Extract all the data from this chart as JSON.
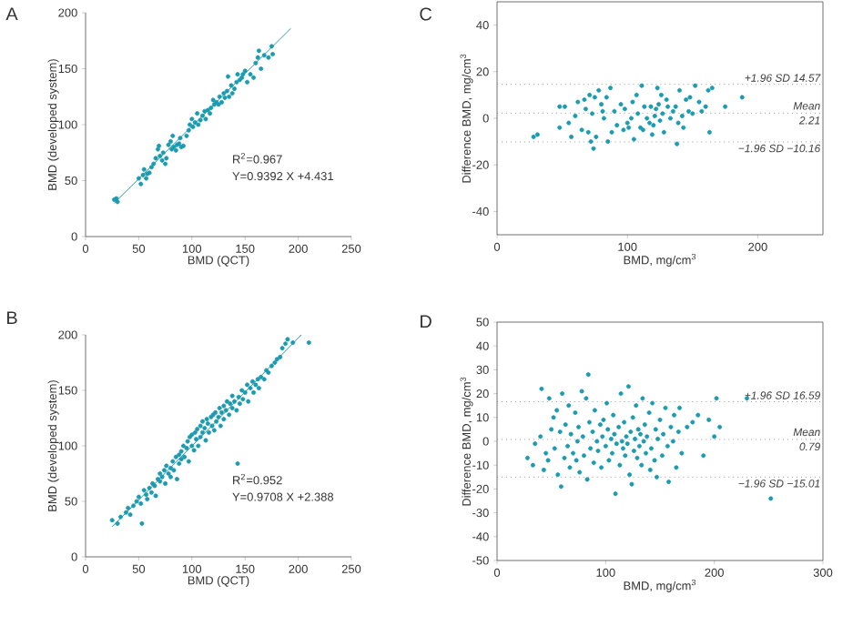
{
  "chart_data": [
    {
      "type": "scatter",
      "title": "A",
      "xlabel": "BMD (QCT)",
      "ylabel": "BMD (developed system)",
      "xlim": [
        0,
        250
      ],
      "ylim": [
        0,
        200
      ],
      "xticks": [
        0,
        50,
        100,
        150,
        200,
        250
      ],
      "yticks": [
        0,
        50,
        100,
        150,
        200
      ],
      "annotations": [
        "R$^{2}$=0.967",
        "Y=0.9392 X +4.431"
      ],
      "series": [
        {
          "marker": "circle",
          "color": "#1a9bb0",
          "x": [
            27,
            29,
            30,
            50,
            52,
            54,
            55,
            57,
            58,
            60,
            62,
            64,
            66,
            68,
            69,
            70,
            72,
            73,
            75,
            76,
            78,
            80,
            81,
            82,
            83,
            85,
            86,
            88,
            89,
            90,
            92,
            95,
            97,
            98,
            100,
            101,
            103,
            105,
            106,
            108,
            110,
            112,
            113,
            115,
            117,
            118,
            120,
            121,
            123,
            125,
            126,
            128,
            130,
            131,
            133,
            134,
            135,
            137,
            138,
            140,
            142,
            143,
            145,
            147,
            148,
            150,
            152,
            155,
            158,
            160,
            162,
            163,
            165,
            168,
            172,
            175,
            176
          ],
          "values": [
            33,
            34,
            31,
            52,
            47,
            55,
            60,
            52,
            56,
            57,
            62,
            65,
            70,
            78,
            81,
            72,
            68,
            75,
            65,
            70,
            82,
            85,
            78,
            90,
            80,
            77,
            82,
            83,
            88,
            80,
            81,
            90,
            95,
            100,
            105,
            98,
            102,
            110,
            100,
            104,
            108,
            112,
            105,
            113,
            110,
            115,
            122,
            118,
            120,
            118,
            125,
            120,
            128,
            124,
            130,
            143,
            125,
            135,
            128,
            132,
            138,
            145,
            140,
            142,
            145,
            148,
            138,
            145,
            142,
            155,
            160,
            166,
            150,
            162,
            160,
            170,
            163
          ]
        },
        {
          "type": "line",
          "marker": "none",
          "color": "#2a9da8",
          "x": [
            27,
            193
          ],
          "values": [
            30,
            186
          ]
        }
      ]
    },
    {
      "type": "scatter",
      "title": "C",
      "xlabel": "BMD, mg/cm$^{3}$",
      "ylabel": "Difference BMD, mg/cm$^{3}$",
      "xlim": [
        0,
        250
      ],
      "ylim": [
        -50,
        50
      ],
      "xticks": [
        0,
        100,
        200
      ],
      "yticks": [
        -40,
        -20,
        0,
        20,
        40
      ],
      "ref_lines": [
        {
          "axis": "y",
          "value": 14.57,
          "label": "+1.96 SD 14.57",
          "color": "#999999",
          "line_style": "dotted"
        },
        {
          "axis": "y",
          "value": 2.21,
          "label": "Mean 2.21",
          "color": "#999999",
          "line_style": "dotted"
        },
        {
          "axis": "y",
          "value": -10.16,
          "label": "−1.96 SD −10.16",
          "color": "#999999",
          "line_style": "dotted"
        }
      ],
      "series": [
        {
          "marker": "circle",
          "color": "#1a9bb0",
          "x": [
            28,
            31,
            48,
            48,
            52,
            55,
            57,
            60,
            62,
            65,
            67,
            68,
            70,
            71,
            72,
            73,
            74,
            75,
            76,
            78,
            80,
            81,
            82,
            84,
            85,
            87,
            88,
            90,
            92,
            95,
            97,
            98,
            100,
            101,
            103,
            104,
            105,
            107,
            108,
            110,
            111,
            112,
            113,
            115,
            117,
            118,
            119,
            120,
            121,
            122,
            123,
            124,
            125,
            126,
            127,
            128,
            130,
            131,
            133,
            135,
            137,
            138,
            139,
            140,
            142,
            143,
            145,
            147,
            148,
            150,
            152,
            155,
            157,
            160,
            162,
            163,
            165,
            175,
            188
          ],
          "values": [
            -8,
            -7,
            5,
            -4,
            5,
            -2,
            -8,
            1,
            7,
            -5,
            8,
            4,
            -6,
            10,
            -10,
            2,
            -13,
            9,
            -8,
            12,
            6,
            3,
            0,
            9,
            -10,
            13,
            -6,
            3,
            -3,
            6,
            -5,
            4,
            -2,
            -4,
            0,
            7,
            -9,
            10,
            2,
            -4,
            14,
            -5,
            5,
            0,
            -2,
            5,
            -7,
            -3,
            1,
            4,
            13,
            6,
            -1,
            10,
            2,
            -6,
            8,
            5,
            0,
            3,
            5,
            -11,
            -2,
            12,
            1,
            -4,
            8,
            3,
            9,
            2,
            14,
            7,
            3,
            5,
            12,
            -6,
            13,
            5,
            9
          ]
        }
      ]
    },
    {
      "type": "scatter",
      "title": "B",
      "xlabel": "BMD (QCT)",
      "ylabel": "BMD (developed system)",
      "xlim": [
        0,
        250
      ],
      "ylim": [
        0,
        200
      ],
      "xticks": [
        0,
        50,
        100,
        150,
        200,
        250
      ],
      "yticks": [
        0,
        50,
        100,
        150,
        200
      ],
      "annotations": [
        "R$^{2}$=0.952",
        "Y=0.9708 X +2.388"
      ],
      "series": [
        {
          "marker": "circle",
          "color": "#1a9bb0",
          "x": [
            25,
            30,
            33,
            38,
            40,
            42,
            45,
            48,
            50,
            52,
            53,
            55,
            57,
            58,
            60,
            62,
            63,
            65,
            66,
            68,
            70,
            70,
            72,
            74,
            75,
            76,
            78,
            80,
            80,
            82,
            83,
            85,
            86,
            88,
            88,
            90,
            90,
            92,
            93,
            95,
            96,
            97,
            98,
            100,
            100,
            102,
            103,
            104,
            105,
            106,
            108,
            108,
            110,
            110,
            112,
            113,
            114,
            115,
            116,
            118,
            119,
            120,
            121,
            122,
            123,
            125,
            126,
            127,
            128,
            130,
            130,
            132,
            133,
            135,
            136,
            138,
            138,
            140,
            142,
            143,
            144,
            145,
            147,
            148,
            150,
            152,
            153,
            155,
            157,
            158,
            160,
            162,
            163,
            165,
            168,
            170,
            172,
            175,
            178,
            180,
            183,
            185,
            188,
            190,
            195,
            210
          ],
          "values": [
            33,
            30,
            36,
            40,
            44,
            38,
            46,
            50,
            54,
            48,
            30,
            60,
            56,
            52,
            62,
            58,
            66,
            64,
            55,
            70,
            68,
            75,
            72,
            78,
            66,
            82,
            75,
            80,
            72,
            86,
            78,
            90,
            70,
            92,
            84,
            95,
            88,
            100,
            90,
            98,
            104,
            86,
            108,
            100,
            110,
            96,
            112,
            106,
            115,
            100,
            118,
            108,
            112,
            122,
            116,
            105,
            124,
            120,
            112,
            126,
            118,
            128,
            114,
            130,
            122,
            126,
            134,
            118,
            130,
            136,
            124,
            132,
            140,
            128,
            138,
            134,
            145,
            140,
            132,
            84,
            144,
            138,
            150,
            142,
            148,
            155,
            140,
            152,
            158,
            148,
            155,
            160,
            152,
            162,
            160,
            168,
            166,
            172,
            175,
            178,
            180,
            188,
            192,
            196,
            193,
            193
          ]
        },
        {
          "type": "line",
          "marker": "none",
          "color": "#2a9da8",
          "x": [
            25,
            203
          ],
          "values": [
            27,
            200
          ]
        }
      ]
    },
    {
      "type": "scatter",
      "title": "D",
      "xlabel": "BMD, mg/cm$^{3}$",
      "ylabel": "Difference BMD, mg/cm$^{3}$",
      "xlim": [
        0,
        300
      ],
      "ylim": [
        -50,
        50
      ],
      "xticks": [
        0,
        100,
        200,
        300
      ],
      "yticks": [
        -50,
        -40,
        -30,
        -20,
        -10,
        0,
        10,
        20,
        30,
        40,
        50
      ],
      "ref_lines": [
        {
          "axis": "y",
          "value": 16.59,
          "label": "+1.96 SD 16.59",
          "color": "#999999",
          "line_style": "dotted"
        },
        {
          "axis": "y",
          "value": 0.79,
          "label": "Mean 0.79",
          "color": "#999999",
          "line_style": "dotted"
        },
        {
          "axis": "y",
          "value": -15.01,
          "label": "−1.96 SD −15.01",
          "color": "#999999",
          "line_style": "dotted"
        }
      ],
      "series": [
        {
          "marker": "circle",
          "color": "#1a9bb0",
          "x": [
            28,
            33,
            35,
            40,
            41,
            43,
            45,
            47,
            48,
            50,
            52,
            53,
            55,
            56,
            58,
            59,
            60,
            62,
            63,
            65,
            66,
            67,
            68,
            70,
            72,
            73,
            74,
            75,
            76,
            78,
            79,
            80,
            82,
            83,
            84,
            85,
            86,
            88,
            89,
            90,
            92,
            93,
            95,
            96,
            97,
            98,
            100,
            101,
            102,
            103,
            105,
            106,
            107,
            108,
            109,
            110,
            112,
            113,
            114,
            115,
            116,
            117,
            118,
            119,
            120,
            121,
            122,
            123,
            124,
            125,
            126,
            127,
            128,
            129,
            130,
            131,
            132,
            133,
            134,
            135,
            136,
            137,
            138,
            140,
            141,
            142,
            143,
            145,
            146,
            147,
            148,
            150,
            152,
            153,
            155,
            157,
            158,
            160,
            162,
            163,
            165,
            167,
            168,
            170,
            175,
            180,
            185,
            190,
            195,
            200,
            202,
            205,
            230,
            252
          ],
          "values": [
            -7,
            -10,
            -1,
            2,
            22,
            -12,
            -5,
            -8,
            18,
            5,
            10,
            -3,
            13,
            -14,
            4,
            -19,
            20,
            -7,
            7,
            -2,
            15,
            -11,
            3,
            -5,
            12,
            -8,
            0,
            6,
            -13,
            21,
            2,
            -6,
            18,
            -16,
            28,
            8,
            -3,
            4,
            -9,
            13,
            0,
            -4,
            7,
            -11,
            2,
            9,
            -2,
            16,
            5,
            -8,
            1,
            -5,
            11,
            3,
            -22,
            -1,
            6,
            -10,
            20,
            0,
            -3,
            8,
            -6,
            2,
            -1,
            23,
            -14,
            4,
            -18,
            10,
            -4,
            1,
            15,
            -7,
            5,
            -2,
            3,
            -10,
            18,
            0,
            7,
            -5,
            2,
            12,
            -12,
            -3,
            16,
            -8,
            5,
            -15,
            1,
            9,
            -6,
            3,
            14,
            -2,
            -17,
            6,
            0,
            11,
            -11,
            4,
            14,
            -5,
            6,
            8,
            11,
            -6,
            9,
            2,
            18,
            6,
            18,
            -24
          ]
        }
      ]
    }
  ]
}
